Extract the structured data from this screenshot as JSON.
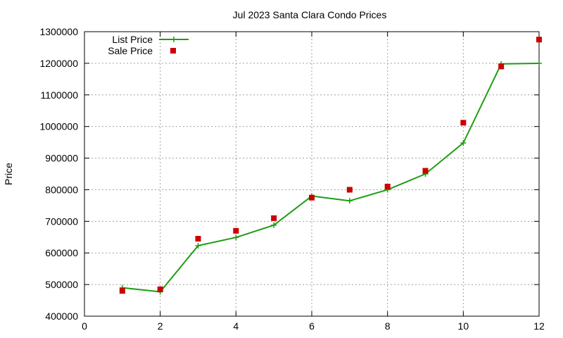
{
  "chart_data": {
    "type": "line",
    "title": "Jul 2023 Santa Clara Condo Prices",
    "xlabel": "",
    "ylabel": "Price",
    "xlim": [
      0,
      12
    ],
    "ylim": [
      400000,
      1300000
    ],
    "xticks": [
      "0",
      "2",
      "4",
      "6",
      "8",
      "10",
      "12"
    ],
    "yticks": [
      "400000",
      "500000",
      "600000",
      "700000",
      "800000",
      "900000",
      "1000000",
      "1100000",
      "1200000",
      "1300000"
    ],
    "grid": true,
    "legend_position": "top-left",
    "series": [
      {
        "name": "List Price",
        "kind": "line+cross",
        "color": "#1e9e12",
        "x": [
          1,
          2,
          3,
          4,
          5,
          6,
          7,
          8,
          9,
          10,
          11,
          12
        ],
        "y": [
          490000,
          477000,
          623000,
          649000,
          688000,
          780000,
          765000,
          800000,
          850000,
          948000,
          1198000,
          1200000
        ]
      },
      {
        "name": "Sale Price",
        "kind": "scatter-square",
        "color": "#cc0000",
        "x": [
          1,
          2,
          3,
          4,
          5,
          6,
          7,
          8,
          9,
          10,
          11,
          12
        ],
        "y": [
          480000,
          485000,
          645000,
          670000,
          710000,
          775000,
          800000,
          810000,
          860000,
          1012000,
          1190000,
          1275000
        ]
      }
    ]
  }
}
